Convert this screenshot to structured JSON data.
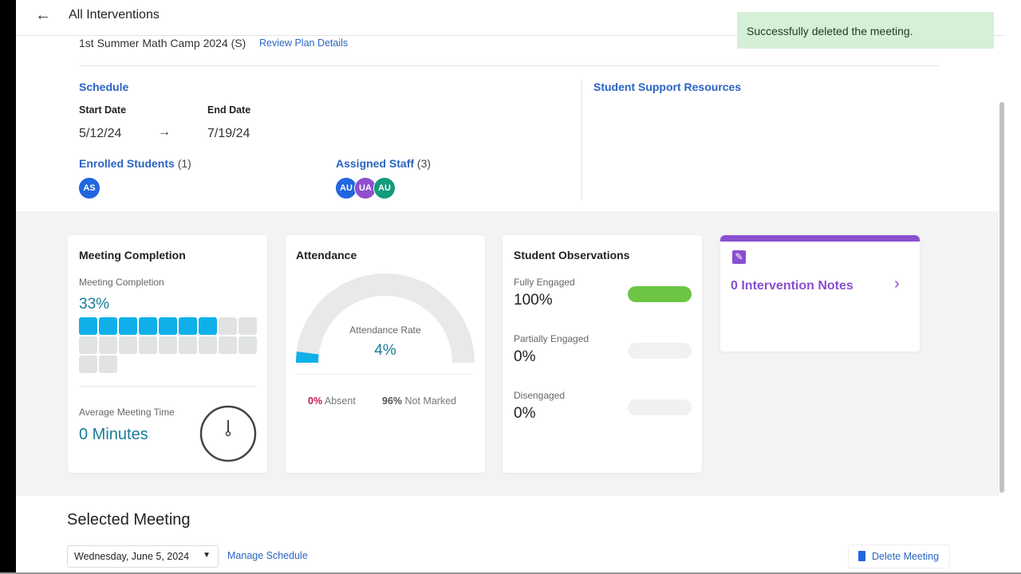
{
  "header": {
    "title": "All Interventions",
    "back_icon": "arrow-left-icon"
  },
  "toast": {
    "message": "Successfully deleted the meeting."
  },
  "plan": {
    "name": "1st Summer Math Camp 2024 (S)",
    "review_link": "Review Plan Details"
  },
  "schedule": {
    "heading": "Schedule",
    "start_label": "Start Date",
    "start": "5/12/24",
    "end_label": "End Date",
    "end": "7/19/24"
  },
  "resources": {
    "heading": "Student Support Resources"
  },
  "enrolled": {
    "label": "Enrolled Students",
    "count": "(1)",
    "avatars": [
      {
        "initials": "AS",
        "color": "#2166e0"
      }
    ]
  },
  "staff": {
    "label": "Assigned Staff",
    "count": "(3)",
    "avatars": [
      {
        "initials": "AU",
        "color": "#2166e0"
      },
      {
        "initials": "UA",
        "color": "#8f4fcf"
      },
      {
        "initials": "AU",
        "color": "#129b7c"
      }
    ]
  },
  "meeting_completion": {
    "title": "Meeting Completion",
    "sub": "Meeting Completion",
    "value": "33%",
    "filled": 7,
    "total": 20,
    "avg_label": "Average Meeting Time",
    "avg_value": "0 Minutes"
  },
  "attendance": {
    "title": "Attendance",
    "rate_label": "Attendance Rate",
    "rate": "4%",
    "rate_fraction": 0.04,
    "absent_value": "0%",
    "absent_label": "Absent",
    "not_marked_value": "96%",
    "not_marked_label": "Not Marked"
  },
  "observations": {
    "title": "Student Observations",
    "items": [
      {
        "label": "Fully Engaged",
        "value": "100%",
        "fraction": 1.0
      },
      {
        "label": "Partially Engaged",
        "value": "0%",
        "fraction": 0
      },
      {
        "label": "Disengaged",
        "value": "0%",
        "fraction": 0
      }
    ]
  },
  "notes": {
    "label": "0 Intervention Notes",
    "accent": "#8a4fcf"
  },
  "selected": {
    "heading": "Selected Meeting",
    "date": "Wednesday, June 5, 2024",
    "manage": "Manage Schedule",
    "delete": "Delete Meeting"
  },
  "colors": {
    "accent_blue": "#2a64c4",
    "fill_blue": "#0fb0ea",
    "green": "#6cc644",
    "absent": "#c2185b"
  }
}
